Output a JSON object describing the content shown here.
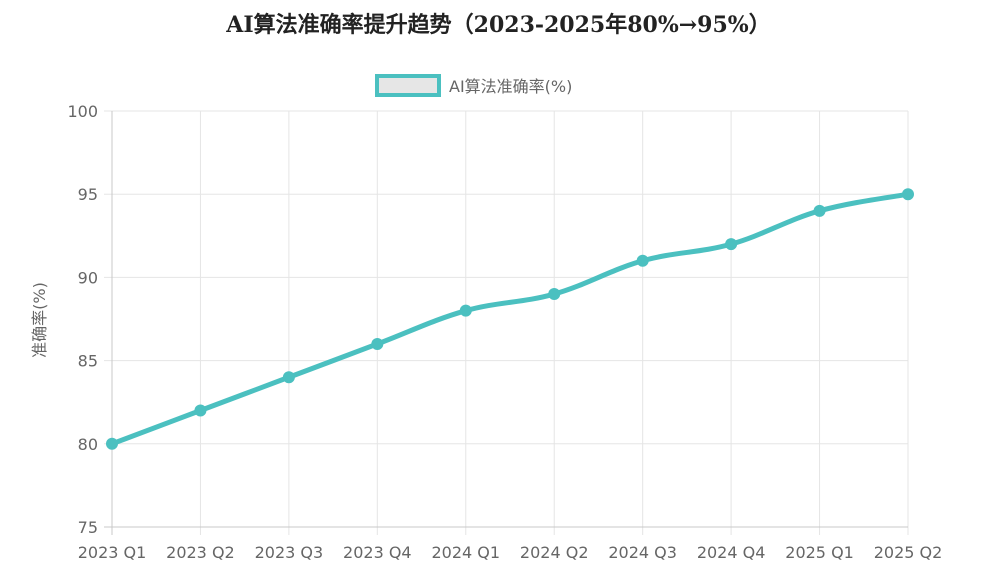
{
  "chart_data": {
    "type": "line",
    "title": "AI算法准确率提升趋势（2023-2025年80%→95%）",
    "xlabel": "",
    "ylabel": "准确率(%)",
    "categories": [
      "2023 Q1",
      "2023 Q2",
      "2023 Q3",
      "2023 Q4",
      "2024 Q1",
      "2024 Q2",
      "2024 Q3",
      "2024 Q4",
      "2025 Q1",
      "2025 Q2"
    ],
    "series": [
      {
        "name": "AI算法准确率(%)",
        "values": [
          80,
          82,
          84,
          86,
          88,
          89,
          91,
          92,
          94,
          95
        ],
        "color": "#4bc0c0"
      }
    ],
    "ylim": [
      75,
      100
    ],
    "yticks": [
      "75",
      "80",
      "85",
      "90",
      "95",
      "100"
    ],
    "grid": true,
    "legend": "top-center"
  }
}
